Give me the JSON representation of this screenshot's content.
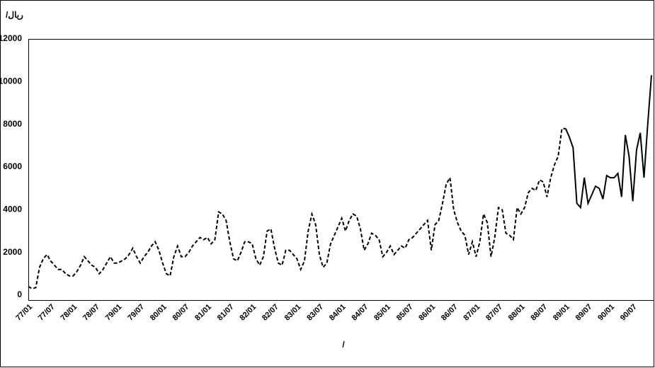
{
  "chart_data": {
    "type": "line",
    "ylabel": "/ریال",
    "xlabel": "/",
    "ylim": [
      0,
      12000
    ],
    "yticks": [
      0,
      2000,
      4000,
      6000,
      8000,
      10000,
      12000
    ],
    "categories": [
      "77/01",
      null,
      null,
      null,
      null,
      null,
      "77/07",
      null,
      null,
      null,
      null,
      null,
      "78/01",
      null,
      null,
      null,
      null,
      null,
      "78/07",
      null,
      null,
      null,
      null,
      null,
      "79/01",
      null,
      null,
      null,
      null,
      null,
      "79/07",
      null,
      null,
      null,
      null,
      null,
      "80/01",
      null,
      null,
      null,
      null,
      null,
      "80/07",
      null,
      null,
      null,
      null,
      null,
      "81/01",
      null,
      null,
      null,
      null,
      null,
      "81/07",
      null,
      null,
      null,
      null,
      null,
      "82/01",
      null,
      null,
      null,
      null,
      null,
      "82/07",
      null,
      null,
      null,
      null,
      null,
      "83/01",
      null,
      null,
      null,
      null,
      null,
      "83/07",
      null,
      null,
      null,
      null,
      null,
      "84/01",
      null,
      null,
      null,
      null,
      null,
      "84/07",
      null,
      null,
      null,
      null,
      null,
      "85/01",
      null,
      null,
      null,
      null,
      null,
      "85/07",
      null,
      null,
      null,
      null,
      null,
      "86/01",
      null,
      null,
      null,
      null,
      null,
      "86/07",
      null,
      null,
      null,
      null,
      null,
      "87/01",
      null,
      null,
      null,
      null,
      null,
      "87/07",
      null,
      null,
      null,
      null,
      null,
      "88/01",
      null,
      null,
      null,
      null,
      null,
      "88/07",
      null,
      null,
      null,
      null,
      null,
      "89/01",
      null,
      null,
      null,
      null,
      null,
      "89/07",
      null,
      null,
      null,
      null,
      null,
      "90/01",
      null,
      null,
      null,
      null,
      null,
      "90/07",
      null,
      null,
      null,
      null,
      null
    ],
    "series": [
      {
        "color": "#000000",
        "line_style": "dashed",
        "values": [
          400,
          300,
          350,
          1300,
          1700,
          1900,
          1600,
          1400,
          1200,
          1200,
          1000,
          900,
          900,
          1100,
          1400,
          1800,
          1600,
          1400,
          1300,
          1000,
          1200,
          1500,
          1800,
          1500,
          1500,
          1600,
          1700,
          1900,
          2200,
          1800,
          1500,
          1800,
          2000,
          2300,
          2500,
          2100,
          1500,
          1000,
          900,
          1800,
          2300,
          1800,
          1800,
          2000,
          2300,
          2500,
          2700,
          2600,
          2700,
          2400,
          2600,
          3900,
          3800,
          3500,
          2500,
          1700,
          1600,
          2000,
          2500,
          2500,
          2400,
          1700,
          1400,
          1800,
          3000,
          3100,
          2200,
          1500,
          1400,
          2100,
          2100,
          1900,
          1700,
          1200,
          1600,
          3000,
          3800,
          3300,
          1900,
          1300,
          1500,
          2400,
          2800,
          3200,
          3600,
          3000,
          3500,
          3800,
          3700,
          3100,
          2100,
          2400,
          2900,
          2800,
          2600,
          1800,
          2000,
          2300,
          1900,
          2100,
          2300,
          2200,
          2600,
          2700,
          2900,
          3100,
          3300,
          3500,
          2100,
          3300,
          3500,
          4300,
          5200,
          5500,
          4000,
          3400,
          3000,
          2800,
          1900,
          2500,
          1800,
          2500,
          3800,
          3400,
          1800,
          2700,
          4100,
          4000,
          2900,
          2800,
          2600,
          4100,
          3800,
          4100,
          4800,
          5000,
          4900,
          5400,
          5300,
          4600,
          5500,
          6100,
          6500,
          7800,
          7800,
          null,
          null,
          null,
          null,
          null,
          null,
          null,
          null,
          null,
          null,
          null,
          null,
          null,
          null,
          null,
          null,
          null,
          null,
          null,
          null,
          null,
          null,
          null
        ]
      },
      {
        "color": "#000000",
        "line_style": "solid",
        "values": [
          null,
          null,
          null,
          null,
          null,
          null,
          null,
          null,
          null,
          null,
          null,
          null,
          null,
          null,
          null,
          null,
          null,
          null,
          null,
          null,
          null,
          null,
          null,
          null,
          null,
          null,
          null,
          null,
          null,
          null,
          null,
          null,
          null,
          null,
          null,
          null,
          null,
          null,
          null,
          null,
          null,
          null,
          null,
          null,
          null,
          null,
          null,
          null,
          null,
          null,
          null,
          null,
          null,
          null,
          null,
          null,
          null,
          null,
          null,
          null,
          null,
          null,
          null,
          null,
          null,
          null,
          null,
          null,
          null,
          null,
          null,
          null,
          null,
          null,
          null,
          null,
          null,
          null,
          null,
          null,
          null,
          null,
          null,
          null,
          null,
          null,
          null,
          null,
          null,
          null,
          null,
          null,
          null,
          null,
          null,
          null,
          null,
          null,
          null,
          null,
          null,
          null,
          null,
          null,
          null,
          null,
          null,
          null,
          null,
          null,
          null,
          null,
          null,
          null,
          null,
          null,
          null,
          null,
          null,
          null,
          null,
          null,
          null,
          null,
          null,
          null,
          null,
          null,
          null,
          null,
          null,
          null,
          null,
          null,
          null,
          null,
          null,
          null,
          null,
          null,
          null,
          null,
          null,
          null,
          7800,
          7400,
          6900,
          4300,
          4100,
          5500,
          4300,
          4700,
          5100,
          5000,
          4500,
          5600,
          5500,
          5500,
          5700,
          4600,
          7500,
          6500,
          4400,
          6800,
          7600,
          5500,
          8000,
          10300
        ]
      }
    ]
  }
}
